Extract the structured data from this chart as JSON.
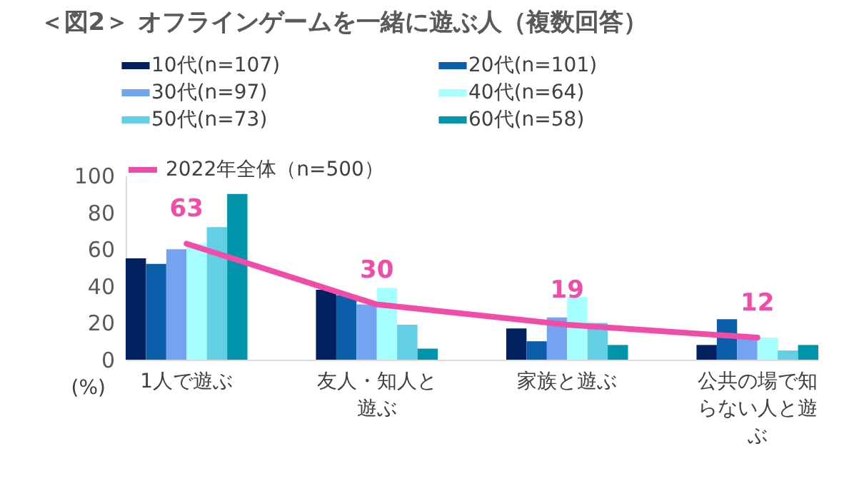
{
  "chart_data": {
    "type": "bar",
    "title": "＜図2＞ オフラインゲームを一緒に遊ぶ人（複数回答）",
    "categories": [
      "1人で遊ぶ",
      "友人・知人と遊ぶ",
      "家族と遊ぶ",
      "公共の場で知らない人と遊ぶ"
    ],
    "series": [
      {
        "name": "10代(n=107)",
        "color": "#002060",
        "values": [
          55,
          38,
          17,
          8
        ]
      },
      {
        "name": "20代(n=101)",
        "color": "#0b5eaa",
        "values": [
          52,
          35,
          10,
          22
        ]
      },
      {
        "name": "30代(n=97)",
        "color": "#74a3f2",
        "values": [
          60,
          30,
          23,
          12
        ]
      },
      {
        "name": "40代(n=64)",
        "color": "#a6ffff",
        "values": [
          63,
          39,
          34,
          12
        ]
      },
      {
        "name": "50代(n=73)",
        "color": "#62cfe5",
        "values": [
          72,
          19,
          20,
          5
        ]
      },
      {
        "name": "60代(n=58)",
        "color": "#0095aa",
        "values": [
          90,
          6,
          8,
          8
        ]
      },
      {
        "name": "2022年全体（n=500）",
        "color": "#f04ca8",
        "type": "line",
        "values": [
          63,
          30,
          19,
          12
        ],
        "value_labels": [
          "63",
          "30",
          "19",
          "12"
        ]
      }
    ],
    "ylim": [
      0,
      100
    ],
    "yticks": [
      0,
      20,
      40,
      60,
      80,
      100
    ],
    "grid": false,
    "legend": "top",
    "annotations": [
      "(%)"
    ]
  }
}
